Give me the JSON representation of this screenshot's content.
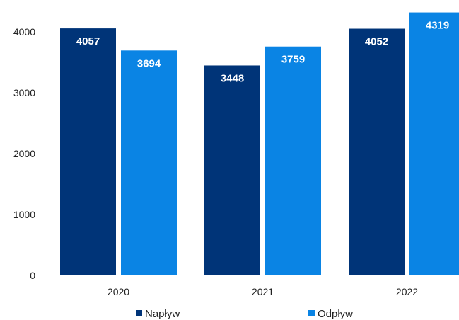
{
  "chart_data": {
    "type": "bar",
    "categories": [
      "2020",
      "2021",
      "2022"
    ],
    "series": [
      {
        "name": "Napływ",
        "values": [
          4057,
          3448,
          4052
        ],
        "color": "#003478"
      },
      {
        "name": "Odpływ",
        "values": [
          3694,
          3759,
          4319
        ],
        "color": "#0a84e4"
      }
    ],
    "yticks": [
      "0",
      "1000",
      "2000",
      "3000",
      "4000"
    ],
    "ylim": [
      0,
      4000
    ],
    "grid": false,
    "legend": "bottom",
    "title": "",
    "xlabel": "",
    "ylabel": ""
  }
}
